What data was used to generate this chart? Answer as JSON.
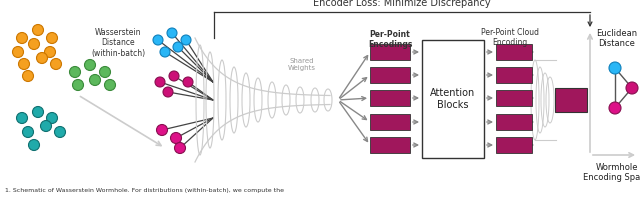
{
  "bg_color": "#ffffff",
  "title_text": "Encoder Loss: Minimize Discrepancy",
  "caption_text": "1. Schematic of Wasserstein Wormhole. For distributions (within-batch), we compute the",
  "wasserstein_label": "Wasserstein\nDistance\n(within-batch)",
  "shared_weights_label": "Shared\nWeights",
  "per_point_enc_label": "Per-Point\nEncodings",
  "attention_label": "Attention\nBlocks",
  "per_cloud_enc_label": "Per-Point Cloud\nEncoding",
  "euclidean_label": "Euclidean\nDistance",
  "wormhole_label": "Wormhole\nEncoding Space",
  "rect_color": "#A0175C",
  "orange_color": "#F5A020",
  "green_color": "#5CB85C",
  "teal_color": "#20AAAA",
  "cyan_color": "#29B6F6",
  "magenta_color": "#CC1077",
  "dark_color": "#222222",
  "gray_color": "#999999",
  "light_gray": "#cccccc",
  "arrow_gray": "#888888"
}
